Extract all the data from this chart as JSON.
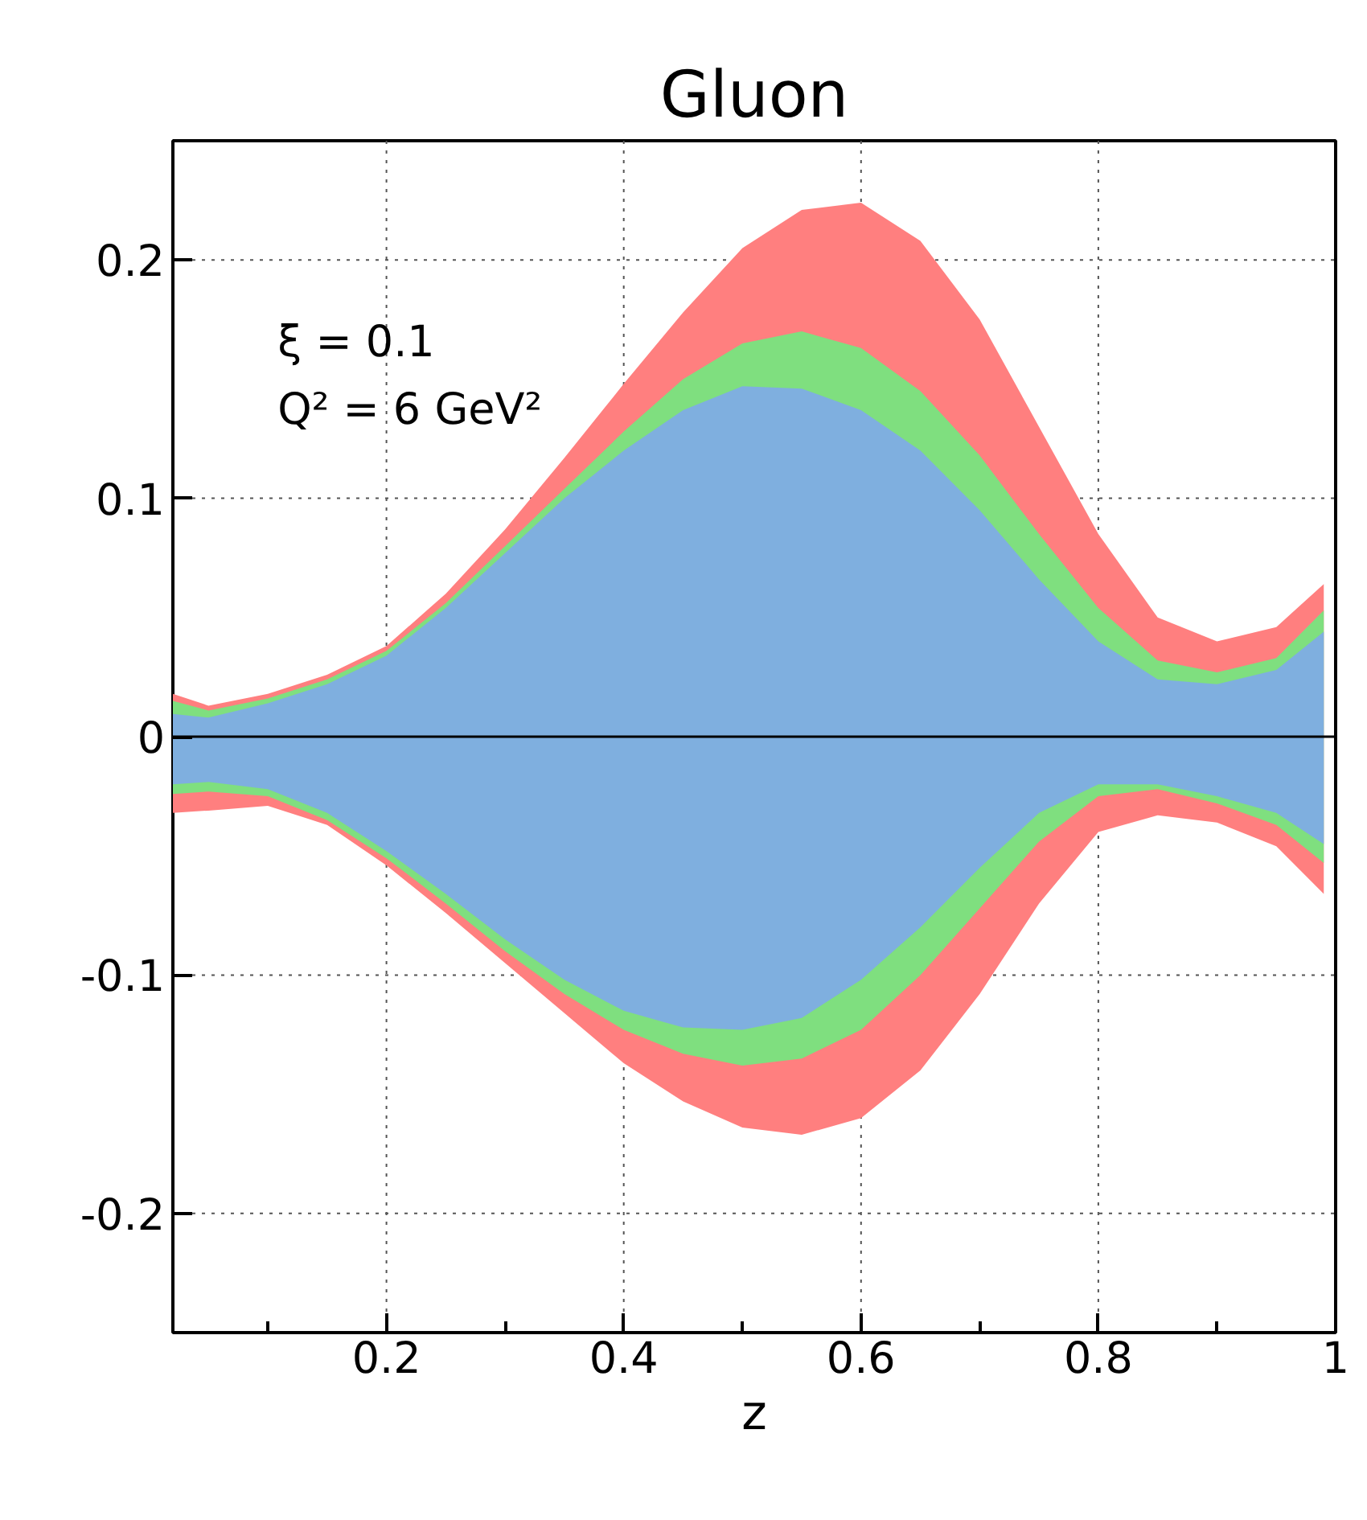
{
  "chart_data": {
    "type": "area",
    "title": "Gluon",
    "xlabel": "z",
    "x": [
      0.02,
      0.05,
      0.1,
      0.15,
      0.2,
      0.25,
      0.3,
      0.35,
      0.4,
      0.45,
      0.5,
      0.55,
      0.6,
      0.65,
      0.7,
      0.75,
      0.8,
      0.85,
      0.9,
      0.95,
      0.99
    ],
    "series": [
      {
        "color": "#ff7f7f",
        "values": [
          0.018,
          0.013,
          0.018,
          0.026,
          0.038,
          0.06,
          0.087,
          0.117,
          0.148,
          0.178,
          0.205,
          0.221,
          0.224,
          0.208,
          0.175,
          0.13,
          0.085,
          0.05,
          0.04,
          0.046,
          0.064
        ]
      },
      {
        "color": "#ff7f7f",
        "values": [
          -0.032,
          -0.031,
          -0.029,
          -0.037,
          -0.054,
          -0.074,
          -0.095,
          -0.116,
          -0.137,
          -0.153,
          -0.164,
          -0.167,
          -0.16,
          -0.14,
          -0.108,
          -0.07,
          -0.04,
          -0.033,
          -0.036,
          -0.046,
          -0.066
        ]
      },
      {
        "color": "#7fdf7f",
        "values": [
          0.015,
          0.011,
          0.016,
          0.024,
          0.036,
          0.056,
          0.08,
          0.104,
          0.128,
          0.15,
          0.165,
          0.17,
          0.163,
          0.145,
          0.118,
          0.085,
          0.054,
          0.032,
          0.027,
          0.033,
          0.053
        ]
      },
      {
        "color": "#7fdf7f",
        "values": [
          -0.024,
          -0.023,
          -0.025,
          -0.035,
          -0.051,
          -0.07,
          -0.09,
          -0.108,
          -0.123,
          -0.133,
          -0.138,
          -0.135,
          -0.123,
          -0.1,
          -0.072,
          -0.044,
          -0.025,
          -0.022,
          -0.028,
          -0.037,
          -0.053
        ]
      },
      {
        "color": "#7fafdf",
        "values": [
          0.0095,
          0.008,
          0.014,
          0.022,
          0.034,
          0.054,
          0.077,
          0.1,
          0.12,
          0.137,
          0.147,
          0.146,
          0.137,
          0.12,
          0.095,
          0.066,
          0.04,
          0.024,
          0.022,
          0.028,
          0.044
        ]
      },
      {
        "color": "#7fafdf",
        "values": [
          -0.02,
          -0.019,
          -0.022,
          -0.032,
          -0.048,
          -0.066,
          -0.085,
          -0.102,
          -0.115,
          -0.122,
          -0.123,
          -0.118,
          -0.102,
          -0.08,
          -0.055,
          -0.032,
          -0.02,
          -0.02,
          -0.025,
          -0.032,
          -0.045
        ]
      }
    ],
    "xlim": [
      0.02,
      1
    ],
    "ylim": [
      -0.25,
      0.25
    ],
    "xticks": [
      {
        "value": 0.1,
        "label": null
      },
      0.2,
      {
        "value": 0.3,
        "label": null
      },
      0.4,
      {
        "value": 0.5,
        "label": null
      },
      0.6,
      {
        "value": 0.7,
        "label": null
      },
      0.8,
      {
        "value": 0.9,
        "label": null
      },
      1
    ],
    "yticks": [
      -0.2,
      -0.1,
      0,
      0.1,
      0.2
    ],
    "ref_lines": [
      {
        "axis": "y",
        "value": 0,
        "color": "#000000"
      }
    ],
    "annotations": [
      "ξ = 0.1",
      "Q² = 6 GeV²"
    ],
    "grid": true
  }
}
